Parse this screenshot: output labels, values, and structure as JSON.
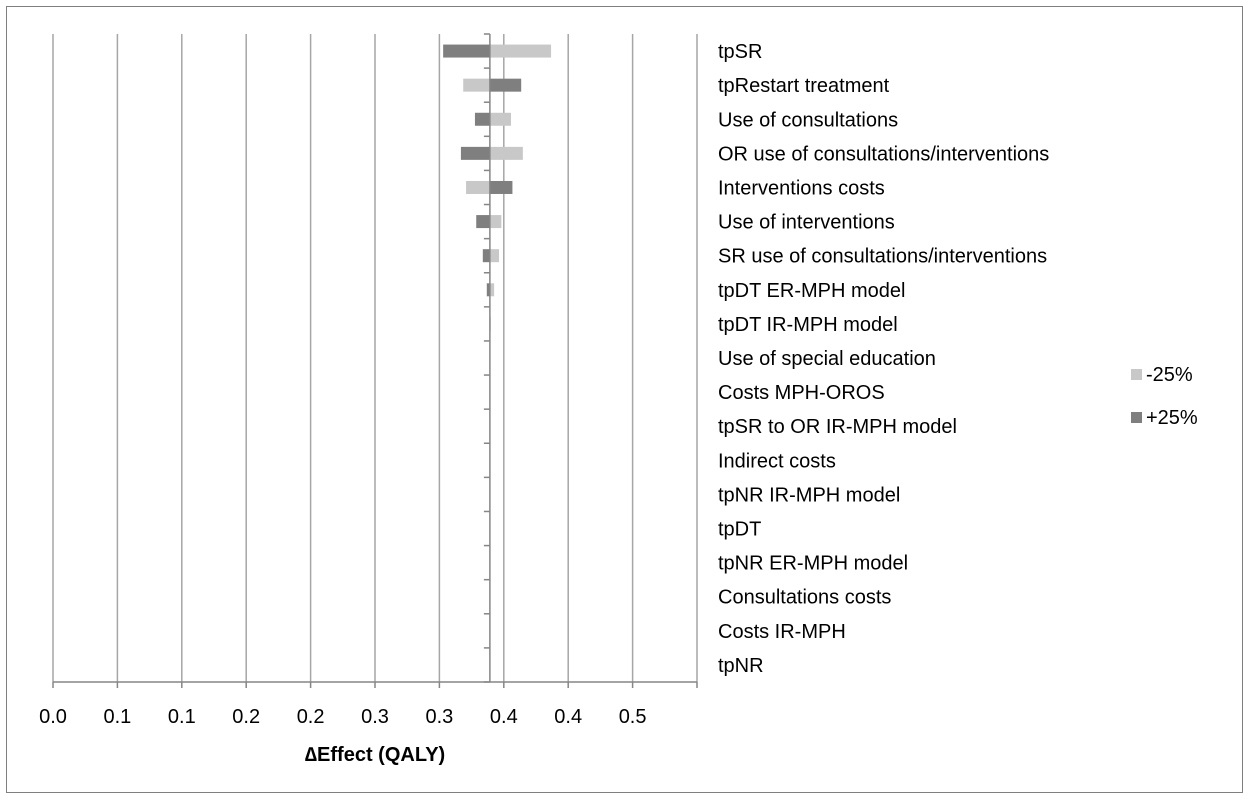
{
  "chart_data": {
    "type": "bar",
    "subtype": "tornado",
    "orientation": "horizontal",
    "title": "",
    "xlabel": "∆Effect (QALY)",
    "ylabel": "",
    "xlim": [
      0.0,
      0.5
    ],
    "x_ticks": [
      0.0,
      0.05,
      0.1,
      0.15,
      0.2,
      0.25,
      0.3,
      0.35,
      0.4,
      0.45
    ],
    "x_tick_labels": [
      "0.0",
      "0.1",
      "0.1",
      "0.2",
      "0.2",
      "0.3",
      "0.3",
      "0.4",
      "0.4",
      "0.5"
    ],
    "base_value": 0.3392,
    "grid": "vertical",
    "legend_position": "right",
    "categories": [
      "tpSR",
      "tpRestart treatment",
      "Use of consultations",
      "OR use of consultations/interventions",
      "Interventions costs",
      "Use of interventions",
      "SR use of consultations/interventions",
      "tpDT ER-MPH model",
      "tpDT IR-MPH model",
      "Use of special education",
      "Costs MPH-OROS",
      "tpSR to OR IR-MPH model",
      "Indirect costs",
      "tpNR IR-MPH model",
      "tpDT",
      "tpNR ER-MPH model",
      "Consultations costs",
      "Costs IR-MPH",
      "tpNR"
    ],
    "series": [
      {
        "name": "-25%",
        "color": "#c8c8c8",
        "values": [
          0.3867,
          0.3185,
          0.3556,
          0.3648,
          0.3207,
          0.3481,
          0.3463,
          0.3425,
          0.3399,
          0.3392,
          0.3392,
          0.3392,
          0.3392,
          0.3392,
          0.3392,
          0.3392,
          0.3392,
          0.3392,
          0.3392
        ]
      },
      {
        "name": "+25%",
        "color": "#7f7f7f",
        "values": [
          0.3029,
          0.3635,
          0.3276,
          0.3167,
          0.3567,
          0.3286,
          0.3337,
          0.3368,
          0.3389,
          0.3392,
          0.3392,
          0.3392,
          0.3392,
          0.3392,
          0.3392,
          0.3392,
          0.3392,
          0.3392,
          0.3392
        ]
      }
    ]
  }
}
